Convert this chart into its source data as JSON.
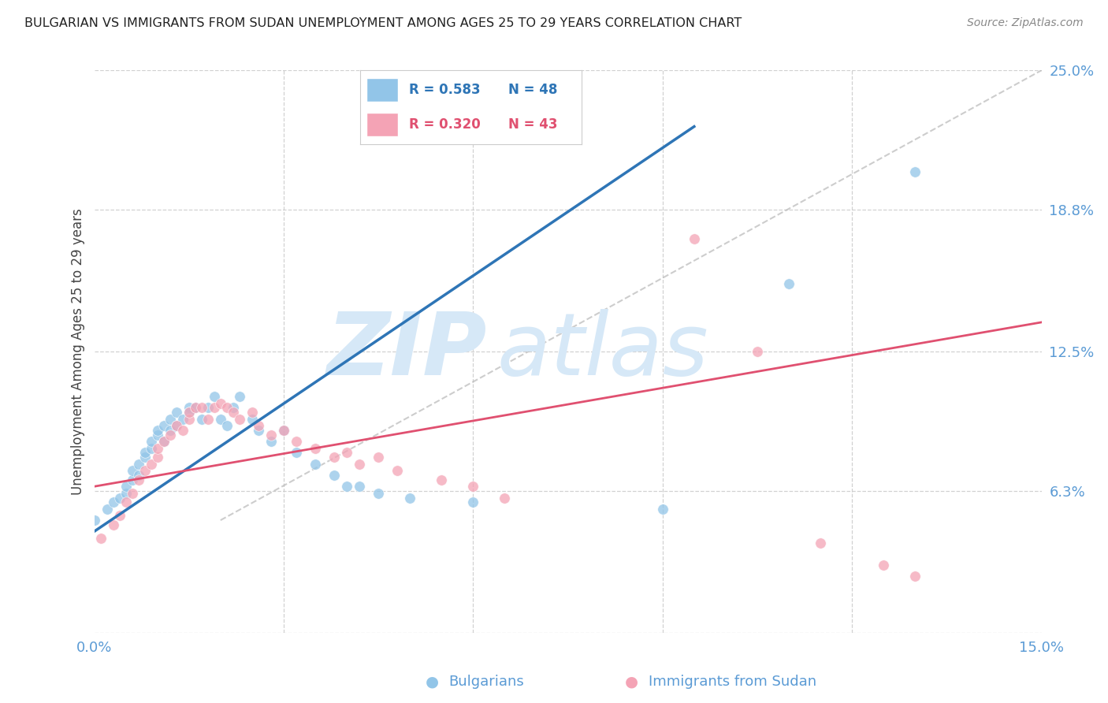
{
  "title": "BULGARIAN VS IMMIGRANTS FROM SUDAN UNEMPLOYMENT AMONG AGES 25 TO 29 YEARS CORRELATION CHART",
  "source": "Source: ZipAtlas.com",
  "ylabel": "Unemployment Among Ages 25 to 29 years",
  "xlim": [
    0.0,
    0.15
  ],
  "ylim": [
    0.0,
    0.25
  ],
  "right_axis_color": "#5b9bd5",
  "grid_color": "#cccccc",
  "background_color": "#ffffff",
  "watermark_color": "#d6e8f7",
  "blue_color": "#92c5e8",
  "pink_color": "#f4a3b5",
  "line_blue_color": "#2e75b6",
  "line_pink_color": "#e05070",
  "ref_line_color": "#b8b8b8",
  "marker_size": 95,
  "blue_scatter_x": [
    0.0,
    0.002,
    0.003,
    0.004,
    0.005,
    0.005,
    0.006,
    0.006,
    0.007,
    0.007,
    0.008,
    0.008,
    0.009,
    0.009,
    0.01,
    0.01,
    0.011,
    0.011,
    0.012,
    0.012,
    0.013,
    0.013,
    0.014,
    0.015,
    0.015,
    0.016,
    0.017,
    0.018,
    0.019,
    0.02,
    0.021,
    0.022,
    0.023,
    0.025,
    0.026,
    0.028,
    0.03,
    0.032,
    0.035,
    0.038,
    0.04,
    0.042,
    0.045,
    0.05,
    0.06,
    0.09,
    0.11,
    0.13
  ],
  "blue_scatter_y": [
    0.05,
    0.055,
    0.058,
    0.06,
    0.062,
    0.065,
    0.068,
    0.072,
    0.07,
    0.075,
    0.078,
    0.08,
    0.082,
    0.085,
    0.088,
    0.09,
    0.085,
    0.092,
    0.09,
    0.095,
    0.092,
    0.098,
    0.095,
    0.1,
    0.098,
    0.1,
    0.095,
    0.1,
    0.105,
    0.095,
    0.092,
    0.1,
    0.105,
    0.095,
    0.09,
    0.085,
    0.09,
    0.08,
    0.075,
    0.07,
    0.065,
    0.065,
    0.062,
    0.06,
    0.058,
    0.055,
    0.155,
    0.205
  ],
  "pink_scatter_x": [
    0.001,
    0.003,
    0.004,
    0.005,
    0.006,
    0.007,
    0.008,
    0.009,
    0.01,
    0.01,
    0.011,
    0.012,
    0.013,
    0.014,
    0.015,
    0.015,
    0.016,
    0.017,
    0.018,
    0.019,
    0.02,
    0.021,
    0.022,
    0.023,
    0.025,
    0.026,
    0.028,
    0.03,
    0.032,
    0.035,
    0.038,
    0.04,
    0.042,
    0.045,
    0.048,
    0.055,
    0.06,
    0.065,
    0.095,
    0.105,
    0.115,
    0.125,
    0.13
  ],
  "pink_scatter_y": [
    0.042,
    0.048,
    0.052,
    0.058,
    0.062,
    0.068,
    0.072,
    0.075,
    0.078,
    0.082,
    0.085,
    0.088,
    0.092,
    0.09,
    0.095,
    0.098,
    0.1,
    0.1,
    0.095,
    0.1,
    0.102,
    0.1,
    0.098,
    0.095,
    0.098,
    0.092,
    0.088,
    0.09,
    0.085,
    0.082,
    0.078,
    0.08,
    0.075,
    0.078,
    0.072,
    0.068,
    0.065,
    0.06,
    0.175,
    0.125,
    0.04,
    0.03,
    0.025
  ],
  "blue_line_x": [
    0.0,
    0.095
  ],
  "blue_line_y": [
    0.045,
    0.225
  ],
  "pink_line_x": [
    0.0,
    0.15
  ],
  "pink_line_y": [
    0.065,
    0.138
  ],
  "ref_line_x": [
    0.02,
    0.15
  ],
  "ref_line_y": [
    0.05,
    0.25
  ]
}
